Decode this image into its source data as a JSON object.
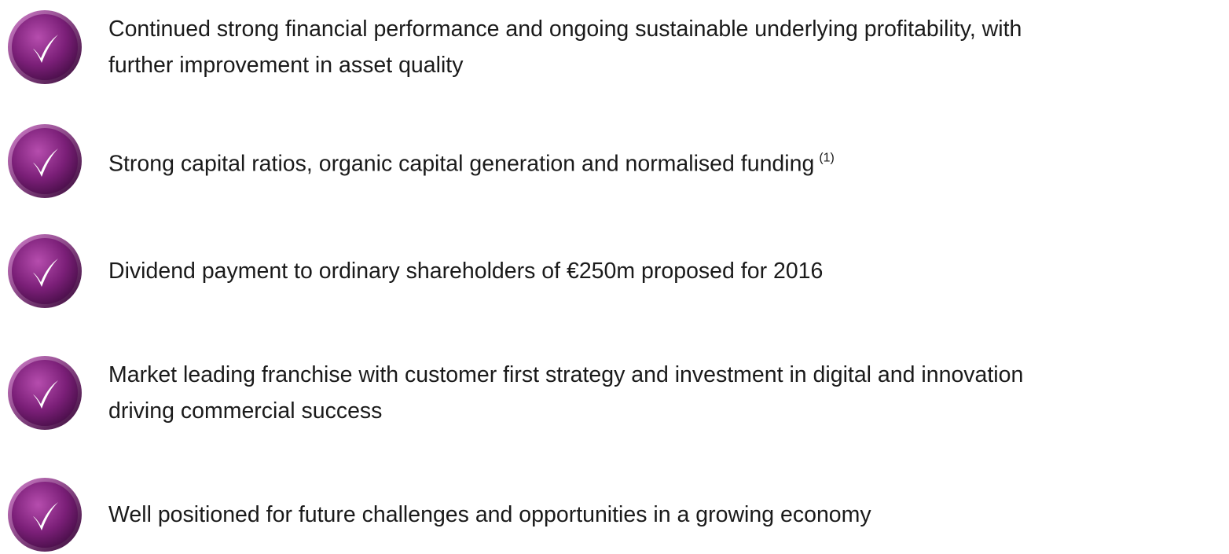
{
  "items": [
    {
      "lines": [
        "Continued strong financial performance and ongoing sustainable underlying profitability, with",
        "further improvement in asset quality"
      ]
    },
    {
      "lines": [
        "Strong capital ratios, organic capital generation and normalised funding"
      ],
      "note": "(1)"
    },
    {
      "lines": [
        "Dividend payment to ordinary shareholders of €250m proposed for 2016"
      ]
    },
    {
      "lines": [
        "Market leading franchise with customer first strategy and investment in digital and innovation",
        "driving commercial success"
      ]
    },
    {
      "lines": [
        "Well positioned for future challenges and opportunities in a growing economy"
      ]
    }
  ]
}
